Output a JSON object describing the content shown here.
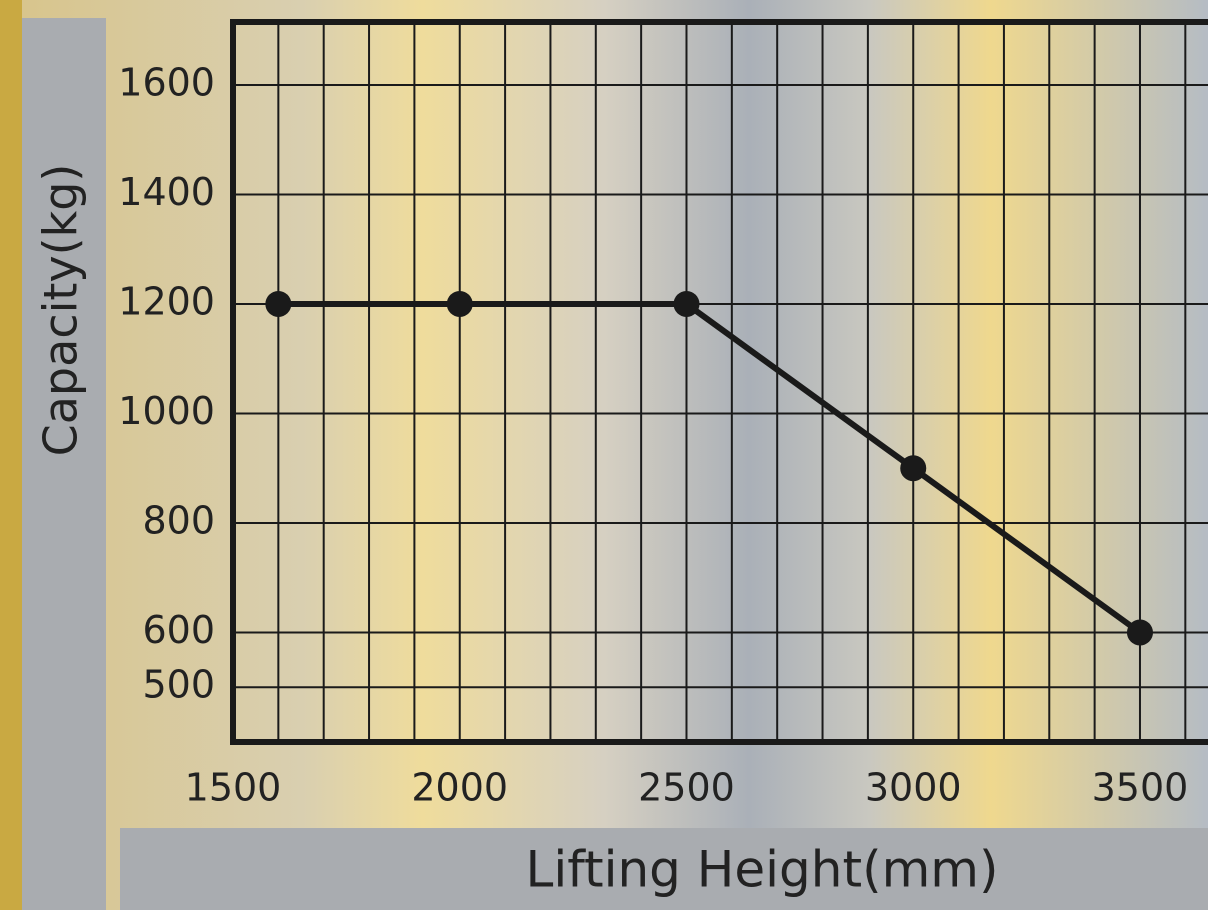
{
  "chart_data": {
    "type": "line",
    "x_label": "Lifting Height(mm)",
    "y_label": "Capacity(kg)",
    "x": [
      1600,
      2000,
      2500,
      3000,
      3500
    ],
    "series": [
      {
        "color": "#1a1a1a",
        "values": [
          1200,
          1200,
          1200,
          900,
          600
        ]
      }
    ],
    "xlim": [
      1500,
      3650
    ],
    "xticks": [
      1500,
      2000,
      2500,
      3000,
      3500
    ],
    "xminor_ticks": [
      1600,
      1700,
      1800,
      1900,
      2100,
      2200,
      2300,
      2400,
      2600,
      2700,
      2800,
      2900,
      3100,
      3200,
      3300,
      3400,
      3600
    ],
    "ylim": [
      400,
      1715
    ],
    "yticks": [
      500,
      600,
      800,
      1000,
      1200,
      1400,
      1600
    ],
    "grid": true
  }
}
